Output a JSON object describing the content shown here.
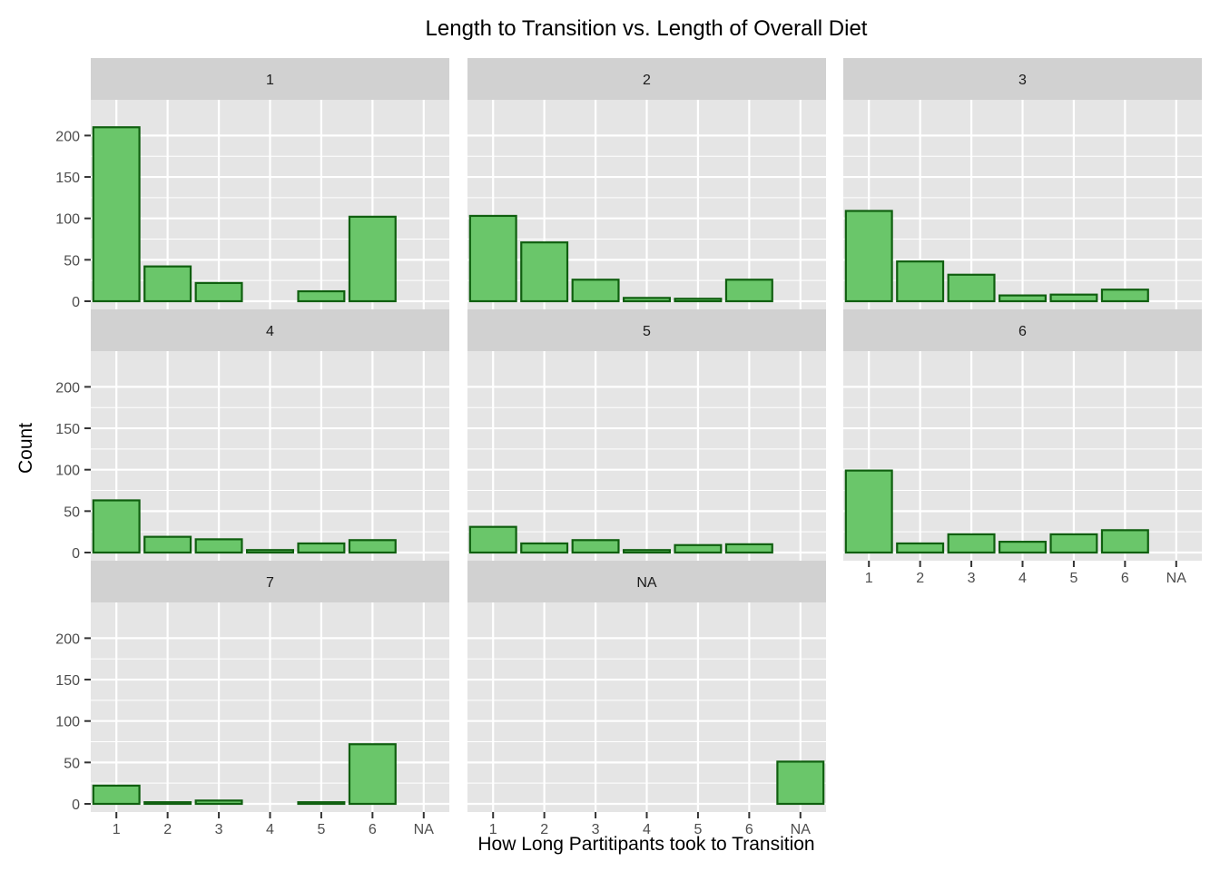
{
  "chart_data": {
    "type": "bar",
    "title": "Length to Transition vs. Length of Overall Diet",
    "xlabel": "How Long Partitipants took to Transition",
    "ylabel": "Count",
    "categories": [
      "1",
      "2",
      "3",
      "4",
      "5",
      "6",
      "NA"
    ],
    "ylim": [
      0,
      230
    ],
    "y_ticks": [
      0,
      50,
      100,
      150,
      200
    ],
    "grid": true,
    "colors": {
      "bar_fill": "#6ac66a",
      "bar_stroke": "#0f5f0f",
      "panel_bg": "#e5e5e5",
      "strip_bg": "#d1d1d1",
      "grid": "#ffffff"
    },
    "facets": [
      {
        "label": "1",
        "values": [
          210,
          42,
          22,
          0,
          12,
          102,
          0
        ]
      },
      {
        "label": "2",
        "values": [
          103,
          71,
          26,
          4,
          3,
          26,
          0
        ]
      },
      {
        "label": "3",
        "values": [
          109,
          48,
          32,
          7,
          8,
          14,
          0
        ]
      },
      {
        "label": "4",
        "values": [
          63,
          19,
          16,
          3,
          11,
          15,
          0
        ]
      },
      {
        "label": "5",
        "values": [
          31,
          11,
          15,
          3,
          9,
          10,
          0
        ]
      },
      {
        "label": "6",
        "values": [
          99,
          11,
          22,
          13,
          22,
          27,
          0
        ]
      },
      {
        "label": "7",
        "values": [
          22,
          2,
          4,
          0,
          2,
          72,
          0
        ]
      },
      {
        "label": "NA",
        "values": [
          0,
          0,
          0,
          0,
          0,
          0,
          51
        ]
      }
    ]
  }
}
